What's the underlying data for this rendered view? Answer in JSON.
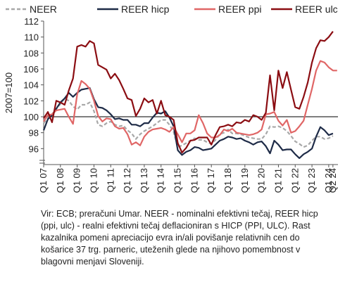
{
  "chart_data": {
    "type": "line",
    "ylabel": "2007=100",
    "ylim": [
      94,
      112
    ],
    "yticks": [
      96,
      98,
      100,
      102,
      104,
      106,
      108,
      110,
      112
    ],
    "reference_line": 100,
    "grid": false,
    "legend_position": "top",
    "xtick_labels": [
      "Q1 07",
      "Q1 08",
      "Q1 09",
      "Q1 10",
      "Q1 11",
      "Q1 12",
      "Q1 13",
      "Q1 14",
      "Q1 15",
      "Q1 16",
      "Q1 17",
      "Q1 18",
      "Q1 19",
      "Q1 20",
      "Q1 21",
      "Q1 22",
      "Q1 23",
      "Q1 24",
      "Q2 24"
    ],
    "xticks": [
      2007.0,
      2008.0,
      2009.0,
      2010.0,
      2011.0,
      2012.0,
      2013.0,
      2014.0,
      2015.0,
      2016.0,
      2017.0,
      2018.0,
      2019.0,
      2020.0,
      2021.0,
      2022.0,
      2023.0,
      2024.0,
      2024.25
    ],
    "series": [
      {
        "name": "NEER",
        "color": "#a8a8a8",
        "dash": true,
        "points": [
          [
            2007.0,
            99.2
          ],
          [
            2007.25,
            99.8
          ],
          [
            2007.5,
            100.3
          ],
          [
            2007.75,
            101.0
          ],
          [
            2008.0,
            101.6
          ],
          [
            2008.25,
            102.3
          ],
          [
            2008.5,
            102.0
          ],
          [
            2008.75,
            101.3
          ],
          [
            2009.0,
            100.9
          ],
          [
            2009.25,
            101.5
          ],
          [
            2009.5,
            101.5
          ],
          [
            2009.75,
            101.8
          ],
          [
            2010.0,
            100.7
          ],
          [
            2010.25,
            99.0
          ],
          [
            2010.5,
            98.8
          ],
          [
            2010.75,
            99.2
          ],
          [
            2011.0,
            99.4
          ],
          [
            2011.25,
            99.0
          ],
          [
            2011.5,
            98.8
          ],
          [
            2011.75,
            98.9
          ],
          [
            2012.0,
            98.3
          ],
          [
            2012.25,
            97.9
          ],
          [
            2012.5,
            97.2
          ],
          [
            2012.75,
            97.8
          ],
          [
            2013.0,
            98.2
          ],
          [
            2013.25,
            98.5
          ],
          [
            2013.5,
            98.8
          ],
          [
            2013.75,
            99.2
          ],
          [
            2014.0,
            99.6
          ],
          [
            2014.25,
            99.6
          ],
          [
            2014.5,
            99.0
          ],
          [
            2014.75,
            98.1
          ],
          [
            2015.0,
            96.2
          ],
          [
            2015.25,
            96.4
          ],
          [
            2015.5,
            96.7
          ],
          [
            2015.75,
            97.0
          ],
          [
            2016.0,
            97.3
          ],
          [
            2016.25,
            97.1
          ],
          [
            2016.5,
            97.1
          ],
          [
            2016.75,
            96.8
          ],
          [
            2017.0,
            96.6
          ],
          [
            2017.25,
            97.1
          ],
          [
            2017.5,
            97.8
          ],
          [
            2017.75,
            98.0
          ],
          [
            2018.0,
            98.4
          ],
          [
            2018.25,
            97.9
          ],
          [
            2018.5,
            97.9
          ],
          [
            2018.75,
            97.8
          ],
          [
            2019.0,
            97.6
          ],
          [
            2019.25,
            97.4
          ],
          [
            2019.5,
            97.3
          ],
          [
            2019.75,
            97.2
          ],
          [
            2020.0,
            97.2
          ],
          [
            2020.25,
            97.8
          ],
          [
            2020.5,
            98.8
          ],
          [
            2020.75,
            98.7
          ],
          [
            2021.0,
            98.8
          ],
          [
            2021.25,
            98.6
          ],
          [
            2021.5,
            98.2
          ],
          [
            2021.75,
            97.6
          ],
          [
            2022.0,
            96.9
          ],
          [
            2022.25,
            96.6
          ],
          [
            2022.5,
            96.2
          ],
          [
            2022.75,
            96.4
          ],
          [
            2023.0,
            97.0
          ],
          [
            2023.25,
            97.5
          ],
          [
            2023.5,
            97.5
          ],
          [
            2023.75,
            97.2
          ],
          [
            2024.0,
            97.3
          ],
          [
            2024.25,
            97.6
          ]
        ]
      },
      {
        "name": "REER hicp",
        "color": "#1e2b47",
        "dash": false,
        "points": [
          [
            2007.0,
            98.3
          ],
          [
            2007.25,
            99.7
          ],
          [
            2007.5,
            100.2
          ],
          [
            2007.75,
            101.0
          ],
          [
            2008.0,
            101.8
          ],
          [
            2008.25,
            102.3
          ],
          [
            2008.5,
            103.0
          ],
          [
            2008.75,
            102.5
          ],
          [
            2009.0,
            103.0
          ],
          [
            2009.25,
            103.4
          ],
          [
            2009.5,
            103.5
          ],
          [
            2009.75,
            103.6
          ],
          [
            2010.0,
            102.2
          ],
          [
            2010.25,
            101.2
          ],
          [
            2010.5,
            101.1
          ],
          [
            2010.75,
            100.8
          ],
          [
            2011.0,
            100.3
          ],
          [
            2011.25,
            99.7
          ],
          [
            2011.5,
            99.8
          ],
          [
            2011.75,
            99.6
          ],
          [
            2012.0,
            99.6
          ],
          [
            2012.25,
            99.0
          ],
          [
            2012.5,
            99.0
          ],
          [
            2012.75,
            98.8
          ],
          [
            2013.0,
            99.2
          ],
          [
            2013.25,
            99.2
          ],
          [
            2013.5,
            99.9
          ],
          [
            2013.75,
            100.5
          ],
          [
            2014.0,
            100.4
          ],
          [
            2014.25,
            100.7
          ],
          [
            2014.5,
            99.9
          ],
          [
            2014.75,
            98.8
          ],
          [
            2015.0,
            95.8
          ],
          [
            2015.25,
            95.2
          ],
          [
            2015.5,
            95.6
          ],
          [
            2015.75,
            95.8
          ],
          [
            2016.0,
            96.2
          ],
          [
            2016.25,
            96.1
          ],
          [
            2016.5,
            95.8
          ],
          [
            2016.75,
            95.9
          ],
          [
            2017.0,
            96.0
          ],
          [
            2017.25,
            96.5
          ],
          [
            2017.5,
            97.0
          ],
          [
            2017.75,
            97.2
          ],
          [
            2018.0,
            97.5
          ],
          [
            2018.25,
            97.4
          ],
          [
            2018.5,
            97.2
          ],
          [
            2018.75,
            97.3
          ],
          [
            2019.0,
            97.0
          ],
          [
            2019.25,
            96.8
          ],
          [
            2019.5,
            96.5
          ],
          [
            2019.75,
            96.8
          ],
          [
            2020.0,
            96.9
          ],
          [
            2020.25,
            96.3
          ],
          [
            2020.5,
            95.4
          ],
          [
            2020.75,
            97.0
          ],
          [
            2021.0,
            96.5
          ],
          [
            2021.25,
            95.8
          ],
          [
            2021.5,
            95.9
          ],
          [
            2021.75,
            95.9
          ],
          [
            2022.0,
            95.3
          ],
          [
            2022.25,
            94.8
          ],
          [
            2022.5,
            95.3
          ],
          [
            2022.75,
            95.6
          ],
          [
            2023.0,
            96.0
          ],
          [
            2023.25,
            97.5
          ],
          [
            2023.5,
            98.7
          ],
          [
            2023.75,
            98.3
          ],
          [
            2024.0,
            97.7
          ],
          [
            2024.25,
            97.9
          ]
        ]
      },
      {
        "name": "REER ppi",
        "color": "#e06666",
        "dash": false,
        "points": [
          [
            2007.0,
            99.4
          ],
          [
            2007.25,
            100.2
          ],
          [
            2007.5,
            100.3
          ],
          [
            2007.75,
            100.8
          ],
          [
            2008.0,
            100.9
          ],
          [
            2008.25,
            101.0
          ],
          [
            2008.5,
            100.0
          ],
          [
            2008.75,
            99.1
          ],
          [
            2009.0,
            102.8
          ],
          [
            2009.25,
            104.5
          ],
          [
            2009.5,
            104.1
          ],
          [
            2009.75,
            103.5
          ],
          [
            2010.0,
            102.0
          ],
          [
            2010.25,
            100.1
          ],
          [
            2010.5,
            99.4
          ],
          [
            2010.75,
            99.8
          ],
          [
            2011.0,
            99.7
          ],
          [
            2011.25,
            98.8
          ],
          [
            2011.5,
            98.5
          ],
          [
            2011.75,
            98.6
          ],
          [
            2012.0,
            97.8
          ],
          [
            2012.25,
            96.5
          ],
          [
            2012.5,
            96.8
          ],
          [
            2012.75,
            96.4
          ],
          [
            2013.0,
            97.5
          ],
          [
            2013.25,
            98.1
          ],
          [
            2013.5,
            98.4
          ],
          [
            2013.75,
            98.5
          ],
          [
            2014.0,
            98.6
          ],
          [
            2014.25,
            98.4
          ],
          [
            2014.5,
            98.1
          ],
          [
            2014.75,
            98.7
          ],
          [
            2015.0,
            97.8
          ],
          [
            2015.25,
            96.8
          ],
          [
            2015.5,
            97.9
          ],
          [
            2015.75,
            97.9
          ],
          [
            2016.0,
            98.3
          ],
          [
            2016.25,
            100.2
          ],
          [
            2016.5,
            99.2
          ],
          [
            2016.75,
            97.9
          ],
          [
            2017.0,
            97.4
          ],
          [
            2017.25,
            97.4
          ],
          [
            2017.5,
            97.7
          ],
          [
            2017.75,
            98.4
          ],
          [
            2018.0,
            98.2
          ],
          [
            2018.25,
            98.5
          ],
          [
            2018.5,
            98.0
          ],
          [
            2018.75,
            97.9
          ],
          [
            2019.0,
            97.8
          ],
          [
            2019.25,
            97.7
          ],
          [
            2019.5,
            97.8
          ],
          [
            2019.75,
            98.0
          ],
          [
            2020.0,
            98.4
          ],
          [
            2020.25,
            100.3
          ],
          [
            2020.5,
            100.4
          ],
          [
            2020.75,
            100.6
          ],
          [
            2021.0,
            99.5
          ],
          [
            2021.25,
            98.9
          ],
          [
            2021.5,
            99.6
          ],
          [
            2021.75,
            98.0
          ],
          [
            2022.0,
            98.2
          ],
          [
            2022.25,
            98.8
          ],
          [
            2022.5,
            99.5
          ],
          [
            2022.75,
            101.5
          ],
          [
            2023.0,
            103.5
          ],
          [
            2023.25,
            105.8
          ],
          [
            2023.5,
            107.0
          ],
          [
            2023.75,
            106.8
          ],
          [
            2024.0,
            106.2
          ],
          [
            2024.25,
            105.8
          ],
          [
            2024.5,
            105.8
          ]
        ]
      },
      {
        "name": "REER ulc",
        "color": "#8b0d12",
        "dash": false,
        "points": [
          [
            2007.0,
            99.8
          ],
          [
            2007.25,
            100.6
          ],
          [
            2007.5,
            99.3
          ],
          [
            2007.75,
            102.0
          ],
          [
            2008.0,
            101.8
          ],
          [
            2008.25,
            101.5
          ],
          [
            2008.5,
            103.3
          ],
          [
            2008.75,
            104.8
          ],
          [
            2009.0,
            108.8
          ],
          [
            2009.25,
            109.0
          ],
          [
            2009.5,
            108.8
          ],
          [
            2009.75,
            109.5
          ],
          [
            2010.0,
            109.2
          ],
          [
            2010.25,
            106.5
          ],
          [
            2010.5,
            106.2
          ],
          [
            2010.75,
            105.9
          ],
          [
            2011.0,
            104.8
          ],
          [
            2011.25,
            105.4
          ],
          [
            2011.5,
            104.6
          ],
          [
            2011.75,
            103.5
          ],
          [
            2012.0,
            102.3
          ],
          [
            2012.25,
            102.1
          ],
          [
            2012.5,
            100.1
          ],
          [
            2012.75,
            101.0
          ],
          [
            2013.0,
            102.3
          ],
          [
            2013.25,
            101.8
          ],
          [
            2013.5,
            102.1
          ],
          [
            2013.75,
            100.4
          ],
          [
            2014.0,
            102.0
          ],
          [
            2014.25,
            100.2
          ],
          [
            2014.5,
            100.0
          ],
          [
            2014.75,
            99.6
          ],
          [
            2015.0,
            96.7
          ],
          [
            2015.25,
            95.5
          ],
          [
            2015.5,
            96.1
          ],
          [
            2015.75,
            97.0
          ],
          [
            2016.0,
            97.1
          ],
          [
            2016.25,
            97.4
          ],
          [
            2016.5,
            97.4
          ],
          [
            2016.75,
            97.4
          ],
          [
            2017.0,
            96.5
          ],
          [
            2017.25,
            97.7
          ],
          [
            2017.5,
            98.7
          ],
          [
            2017.75,
            98.8
          ],
          [
            2018.0,
            99.0
          ],
          [
            2018.25,
            98.8
          ],
          [
            2018.5,
            99.3
          ],
          [
            2018.75,
            99.2
          ],
          [
            2019.0,
            99.6
          ],
          [
            2019.25,
            99.4
          ],
          [
            2019.5,
            100.2
          ],
          [
            2019.75,
            100.0
          ],
          [
            2020.0,
            99.6
          ],
          [
            2020.25,
            100.5
          ],
          [
            2020.5,
            105.2
          ],
          [
            2020.75,
            100.8
          ],
          [
            2021.0,
            105.8
          ],
          [
            2021.25,
            103.6
          ],
          [
            2021.5,
            105.6
          ],
          [
            2021.75,
            103.4
          ],
          [
            2022.0,
            101.2
          ],
          [
            2022.25,
            101.0
          ],
          [
            2022.5,
            102.5
          ],
          [
            2022.75,
            104.3
          ],
          [
            2023.0,
            106.8
          ],
          [
            2023.25,
            108.6
          ],
          [
            2023.5,
            109.6
          ],
          [
            2023.75,
            109.5
          ],
          [
            2024.0,
            110.0
          ],
          [
            2024.25,
            110.7
          ]
        ]
      }
    ]
  },
  "footnote": {
    "lines": [
      "Vir: ECB; preračuni Umar. NEER - nominalni efektivni tečaj, REER hicp",
      "(ppi, ulc) - realni efektivni tečaj deflacioniran s HICP (PPI, ULC). Rast",
      "kazalnika pomeni apreciacijo evra in/ali povišanje relativnih cen do",
      "košarice 37 trg. parneric, uteženih glede na njihovo pomembnost v",
      "blagovni menjavi Sloveniji."
    ]
  }
}
